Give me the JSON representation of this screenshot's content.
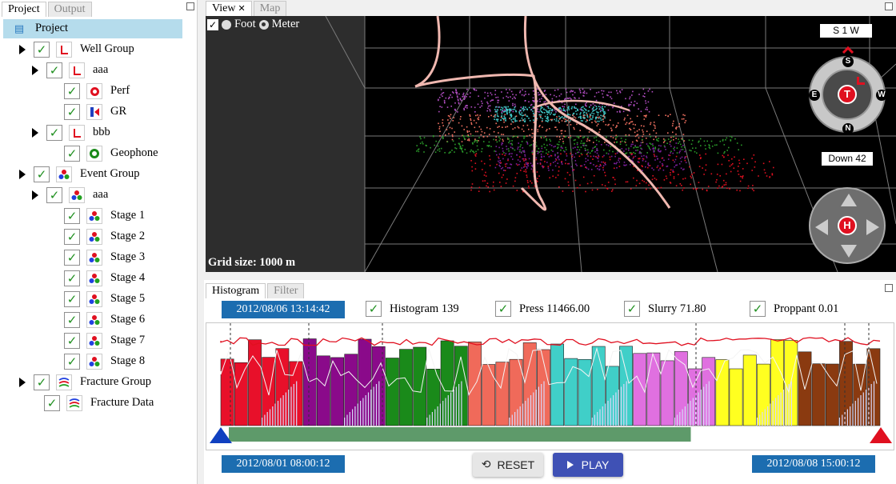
{
  "left_panel": {
    "tabs": [
      {
        "label": "Project",
        "active": true
      },
      {
        "label": "Output",
        "active": false
      }
    ],
    "tree": [
      {
        "label": "Project",
        "icon": "project-doc-icon",
        "depth": 0,
        "has_arrow": false,
        "has_check": false,
        "selected": true
      },
      {
        "label": "Well Group",
        "icon": "well-icon",
        "depth": 1,
        "has_arrow": true,
        "has_check": true
      },
      {
        "label": "aaa",
        "icon": "well-icon",
        "depth": 2,
        "has_arrow": true,
        "has_check": true
      },
      {
        "label": "Perf",
        "icon": "perf-icon",
        "depth": 3,
        "has_arrow": false,
        "has_check": true
      },
      {
        "label": "GR",
        "icon": "gr-icon",
        "depth": 3,
        "has_arrow": false,
        "has_check": true
      },
      {
        "label": "bbb",
        "icon": "well-icon",
        "depth": 2,
        "has_arrow": true,
        "has_check": true
      },
      {
        "label": "Geophone",
        "icon": "geophone-icon",
        "depth": 3,
        "has_arrow": false,
        "has_check": true
      },
      {
        "label": "Event Group",
        "icon": "event-icon",
        "depth": 1,
        "has_arrow": true,
        "has_check": true
      },
      {
        "label": "aaa",
        "icon": "event-icon",
        "depth": 2,
        "has_arrow": true,
        "has_check": true
      },
      {
        "label": "Stage 1",
        "icon": "event-icon",
        "depth": 3,
        "has_arrow": false,
        "has_check": true
      },
      {
        "label": "Stage 2",
        "icon": "event-icon",
        "depth": 3,
        "has_arrow": false,
        "has_check": true
      },
      {
        "label": "Stage 3",
        "icon": "event-icon",
        "depth": 3,
        "has_arrow": false,
        "has_check": true
      },
      {
        "label": "Stage 4",
        "icon": "event-icon",
        "depth": 3,
        "has_arrow": false,
        "has_check": true
      },
      {
        "label": "Stage 5",
        "icon": "event-icon",
        "depth": 3,
        "has_arrow": false,
        "has_check": true
      },
      {
        "label": "Stage 6",
        "icon": "event-icon",
        "depth": 3,
        "has_arrow": false,
        "has_check": true
      },
      {
        "label": "Stage 7",
        "icon": "event-icon",
        "depth": 3,
        "has_arrow": false,
        "has_check": true
      },
      {
        "label": "Stage 8",
        "icon": "event-icon",
        "depth": 3,
        "has_arrow": false,
        "has_check": true
      },
      {
        "label": "Fracture Group",
        "icon": "fracture-icon",
        "depth": 1,
        "has_arrow": true,
        "has_check": true
      },
      {
        "label": "Fracture Data",
        "icon": "fracture-icon",
        "depth": 2,
        "has_arrow": false,
        "has_check": true
      }
    ]
  },
  "view_panel": {
    "tabs": [
      {
        "label": "View",
        "active": true,
        "closable": true
      },
      {
        "label": "Map",
        "active": false
      }
    ],
    "units": {
      "checkbox_checked": true,
      "options": [
        "Foot",
        "Meter"
      ],
      "selected": "Meter"
    },
    "grid_size_label": "Grid size: 1000 m",
    "compass": {
      "heading_label": "S 1 W",
      "tilt_label": "Down 42",
      "center_label": "T",
      "directions": {
        "top": "S",
        "right": "W",
        "bottom": "N",
        "left": "E"
      }
    },
    "pan_control": {
      "center_label": "H"
    },
    "colors": {
      "stage_purple": "#b04cc0",
      "stage_cyan": "#3fc6c6",
      "stage_salmon": "#f07060",
      "stage_green": "#2a9a2a",
      "stage_violet": "#7a1f9a",
      "stage_red": "#e01020",
      "well": "#f0b8b0"
    }
  },
  "histogram_panel": {
    "tabs": [
      {
        "label": "Histogram",
        "active": true
      },
      {
        "label": "Filter",
        "active": false
      }
    ],
    "current_time": "2012/08/06 13:14:42",
    "series_toggles": [
      {
        "label": "Histogram 139",
        "checked": true
      },
      {
        "label": "Press 11466.00",
        "checked": true
      },
      {
        "label": "Slurry 71.80",
        "checked": true
      },
      {
        "label": "Proppant 0.01",
        "checked": true
      }
    ],
    "start_time": "2012/08/01 08:00:12",
    "end_time": "2012/08/08 15:00:12",
    "reset_label": "RESET",
    "play_label": "PLAY",
    "progress_fraction": 0.7,
    "stage_colors": [
      "#e8102a",
      "#8a0a8a",
      "#1a8a1a",
      "#f06a5a",
      "#40cfc8",
      "#e070e0",
      "#ffff20",
      "#8a3a10"
    ]
  }
}
